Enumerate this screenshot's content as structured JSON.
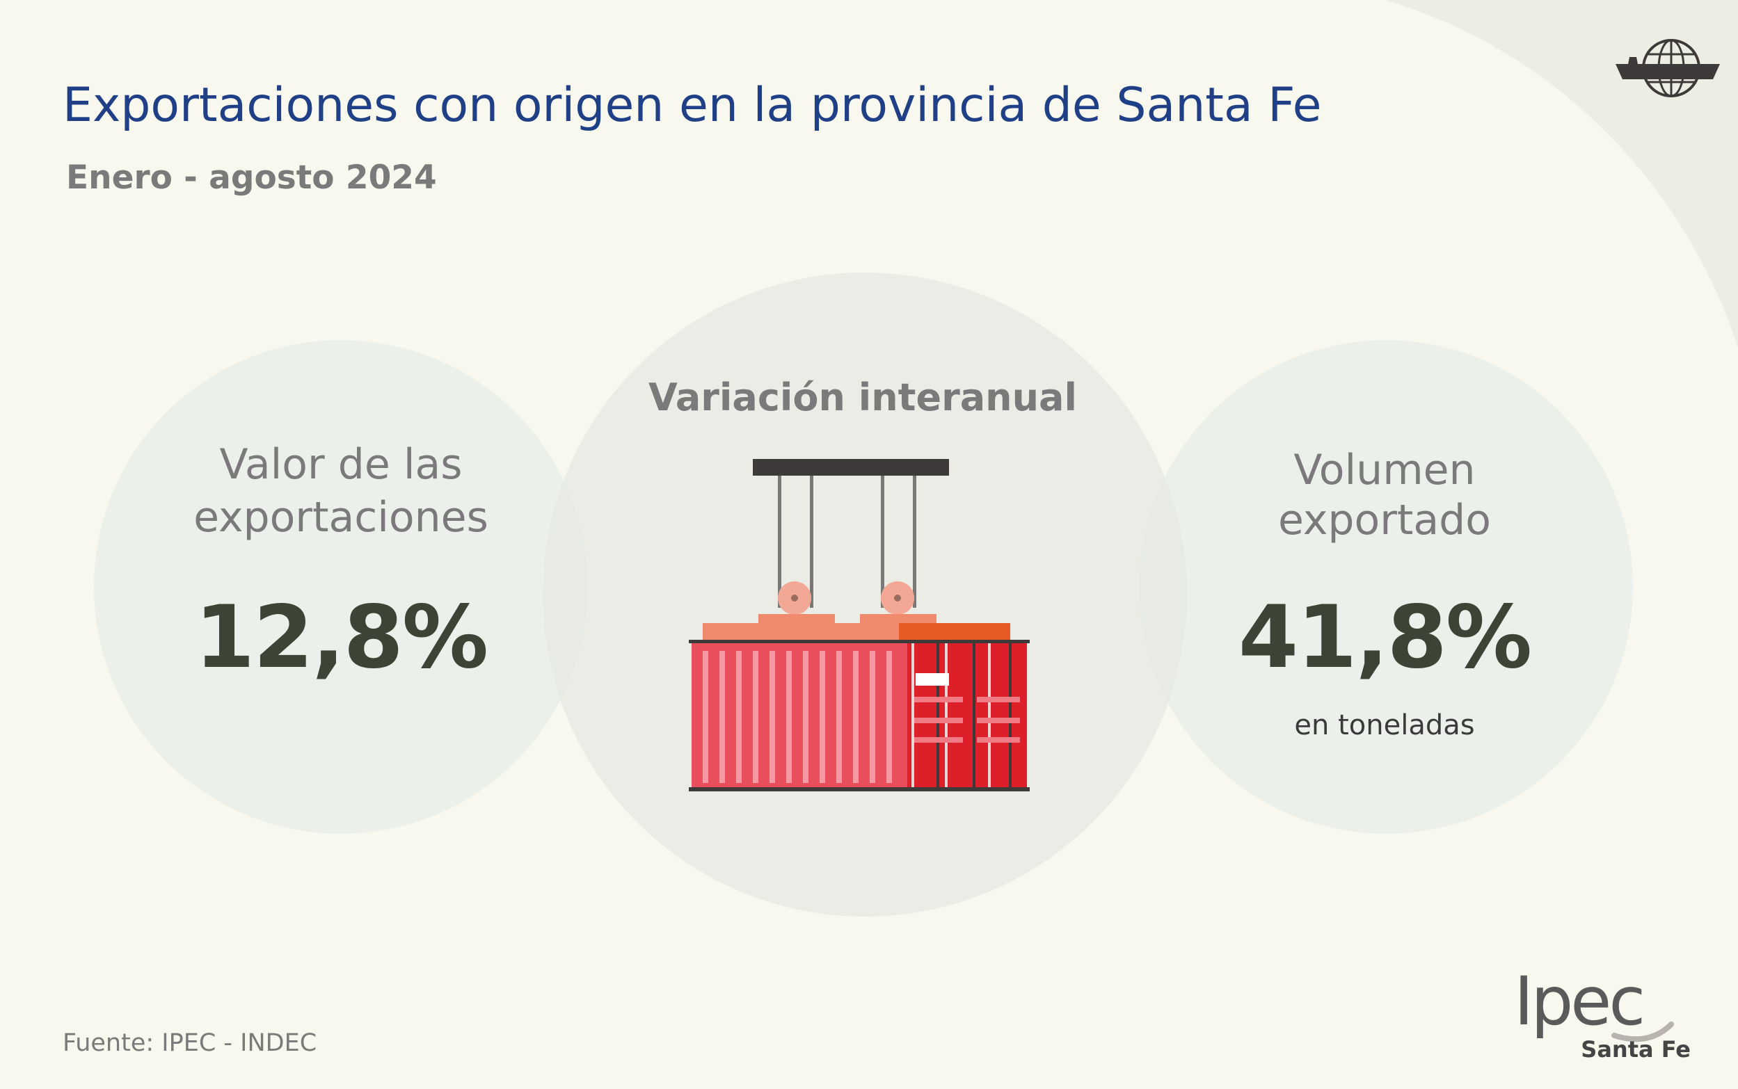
{
  "header": {
    "title": "Exportaciones con origen en la provincia de Santa Fe",
    "subtitle": "Enero - agosto 2024"
  },
  "center": {
    "label": "Variación interanual",
    "illustration": "shipping-container-crane-icon"
  },
  "left": {
    "label_line1": "Valor de las",
    "label_line2": "exportaciones",
    "value": "12,8%"
  },
  "right": {
    "label_line1": "Volumen",
    "label_line2": "exportado",
    "value": "41,8%",
    "unit": "en toneladas"
  },
  "footer": {
    "source": "Fuente: IPEC - INDEC"
  },
  "logo": {
    "text": "Ipec",
    "subtitle": "Santa Fe"
  },
  "icons": {
    "corner": "ship-globe-icon"
  },
  "colors": {
    "background": "#f8f8ee",
    "title": "#1f3f86",
    "value": "#3d4335",
    "container_red": "#e32b35"
  }
}
